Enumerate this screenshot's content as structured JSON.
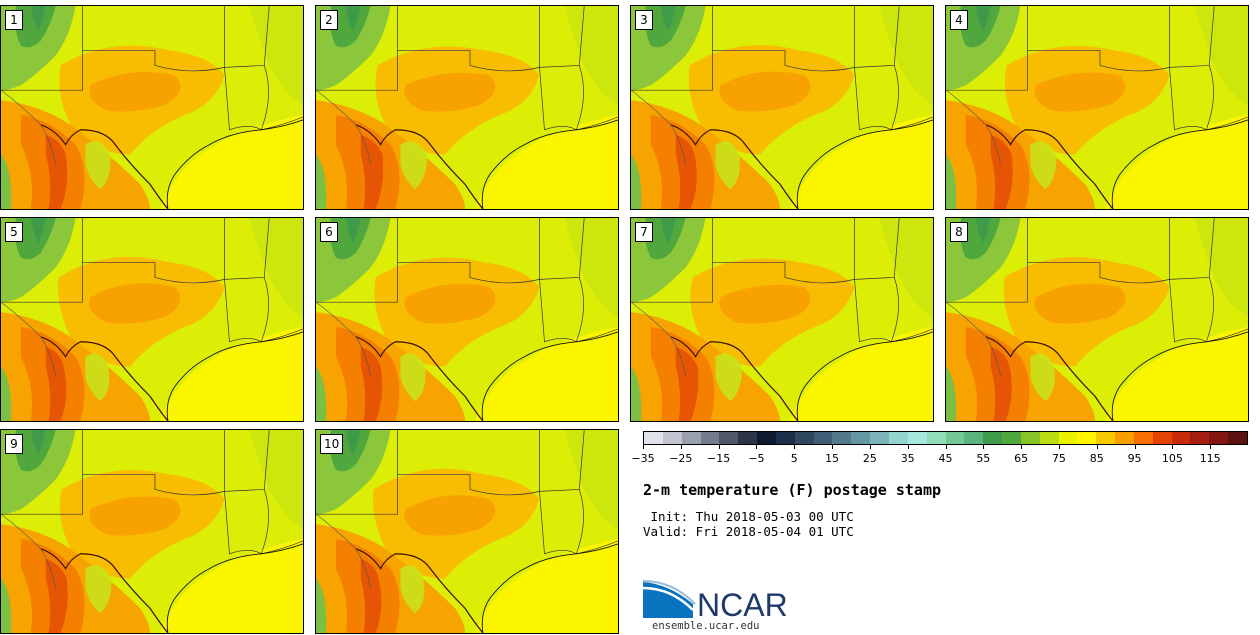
{
  "panels": [
    {
      "label": "1",
      "variant": 1
    },
    {
      "label": "2",
      "variant": 2
    },
    {
      "label": "3",
      "variant": 3
    },
    {
      "label": "4",
      "variant": 4
    },
    {
      "label": "5",
      "variant": 5
    },
    {
      "label": "6",
      "variant": 6
    },
    {
      "label": "7",
      "variant": 7
    },
    {
      "label": "8",
      "variant": 8
    },
    {
      "label": "9",
      "variant": 9
    },
    {
      "label": "10",
      "variant": 10
    }
  ],
  "colorbar": {
    "min": -35,
    "max": 120,
    "step": 5,
    "tick_labels": [
      "−35",
      "−25",
      "−15",
      "−5",
      "5",
      "15",
      "25",
      "35",
      "45",
      "55",
      "65",
      "75",
      "85",
      "95",
      "105",
      "115"
    ],
    "colors": [
      "#e1e3ea",
      "#c2c5cf",
      "#9aa0ae",
      "#747c8d",
      "#4e5869",
      "#2c3547",
      "#0d1a30",
      "#1c2e48",
      "#2f475f",
      "#3f5d74",
      "#527a8a",
      "#6597a3",
      "#7bb4b9",
      "#93d4d1",
      "#a6e8de",
      "#92dcb8",
      "#74c898",
      "#5bb47c",
      "#3f9b4a",
      "#4fa73e",
      "#86c427",
      "#bcdc14",
      "#eaf202",
      "#fff500",
      "#f7c900",
      "#f79e00",
      "#f86e00",
      "#e44305",
      "#c72b0a",
      "#a51d0f",
      "#841612",
      "#5e1210"
    ]
  },
  "title": "2-m temperature (F) postage stamp",
  "init": " Init: Thu 2018-05-03 00 UTC",
  "valid": "Valid: Fri 2018-05-04 01 UTC",
  "logo": {
    "name": "NCAR",
    "url": "ensemble.ucar.edu"
  }
}
